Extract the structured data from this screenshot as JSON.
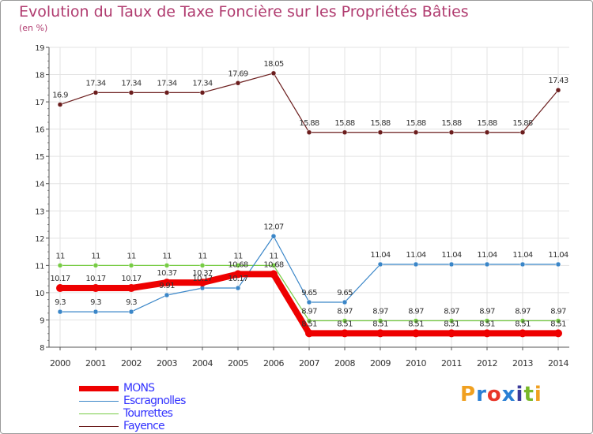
{
  "title": "Evolution du Taux de Taxe Foncière sur les Propriétés Bâties",
  "subtitle": "(en %)",
  "chart_data": {
    "type": "line",
    "title": "Evolution du Taux de Taxe Foncière sur les Propriétés Bâties",
    "ylabel": "(en %)",
    "xlabel": "",
    "ylim": [
      8,
      19
    ],
    "yticks": [
      "8",
      "9",
      "10",
      "11",
      "12",
      "13",
      "14",
      "15",
      "16",
      "17",
      "18",
      "19"
    ],
    "categories": [
      "2000",
      "2001",
      "2002",
      "2003",
      "2004",
      "2005",
      "2006",
      "2007",
      "2008",
      "2009",
      "2010",
      "2011",
      "2012",
      "2013",
      "2014"
    ],
    "series": [
      {
        "name": "Fayence",
        "color": "#6b1d1d",
        "values": [
          16.9,
          17.34,
          17.34,
          17.34,
          17.34,
          17.69,
          18.05,
          15.88,
          15.88,
          15.88,
          15.88,
          15.88,
          15.88,
          15.88,
          17.43
        ],
        "labels": [
          "16.9",
          "17.34",
          "17.34",
          "17.34",
          "17.34",
          "17.69",
          "18.05",
          "15.88",
          "15.88",
          "15.88",
          "15.88",
          "15.88",
          "15.88",
          "15.88",
          "17.43"
        ]
      },
      {
        "name": "Tourrettes",
        "color": "#77cc44",
        "values": [
          11,
          11,
          11,
          11,
          11,
          11,
          11,
          8.97,
          8.97,
          8.97,
          8.97,
          8.97,
          8.97,
          8.97,
          8.97
        ],
        "labels": [
          "11",
          "11",
          "11",
          "11",
          "11",
          "11",
          "11",
          "8.97",
          "8.97",
          "8.97",
          "8.97",
          "8.97",
          "8.97",
          "8.97",
          "8.97"
        ]
      },
      {
        "name": "Escragnolles",
        "color": "#3a86c8",
        "values": [
          9.3,
          9.3,
          9.3,
          9.91,
          10.17,
          10.17,
          12.07,
          9.65,
          9.65,
          11.04,
          11.04,
          11.04,
          11.04,
          11.04,
          11.04
        ],
        "labels": [
          "9.3",
          "9.3",
          "9.3",
          "9.91",
          "10.17",
          "10.17",
          "12.07",
          "9.65",
          "9.65",
          "11.04",
          "11.04",
          "11.04",
          "11.04",
          "11.04",
          "11.04"
        ]
      },
      {
        "name": "MONS",
        "color": "#ee0000",
        "values": [
          10.17,
          10.17,
          10.17,
          10.37,
          10.37,
          10.68,
          10.68,
          8.51,
          8.51,
          8.51,
          8.51,
          8.51,
          8.51,
          8.51,
          8.51
        ],
        "labels": [
          "10.17",
          "10.17",
          "10.17",
          "10.37",
          "10.37",
          "10.68",
          "10.68",
          "8.51",
          "8.51",
          "8.51",
          "8.51",
          "8.51",
          "8.51",
          "8.51",
          "8.51"
        ]
      }
    ],
    "legend": [
      "MONS",
      "Escragnolles",
      "Tourrettes",
      "Fayence"
    ]
  },
  "legend": [
    {
      "label": "MONS",
      "color": "#ee0000"
    },
    {
      "label": "Escragnolles",
      "color": "#3a86c8"
    },
    {
      "label": "Tourrettes",
      "color": "#77cc44"
    },
    {
      "label": "Fayence",
      "color": "#6b1d1d"
    }
  ],
  "logo": {
    "letters": [
      "P",
      "r",
      "o",
      "x",
      "i",
      "t",
      "i"
    ],
    "colors": [
      "#f0a020",
      "#2a7fd4",
      "#e8362a",
      "#2a7fd4",
      "#3a3a9a",
      "#79b829",
      "#f0a020"
    ]
  }
}
